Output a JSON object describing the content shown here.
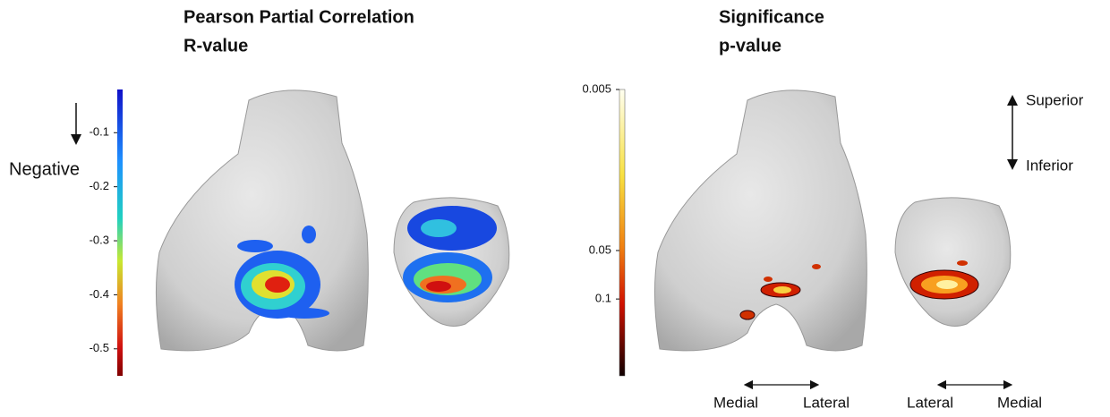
{
  "left_panel": {
    "title": [
      "Pearson Partial Correlation",
      "R-value"
    ],
    "direction_label": "Negative",
    "colorbar": {
      "scale": "linear",
      "lim": [
        -0.55,
        -0.02
      ],
      "ticks": [
        -0.1,
        -0.2,
        -0.3,
        -0.4,
        -0.5
      ]
    }
  },
  "right_panel": {
    "title": [
      "Significance",
      "p-value"
    ],
    "colorbar": {
      "scale": "log",
      "lim": [
        0.005,
        0.3
      ],
      "ticks": [
        0.005,
        0.05,
        0.1
      ]
    },
    "orientation": [
      "Superior",
      "Inferior"
    ],
    "femur_axis": [
      "Medial",
      "Lateral"
    ],
    "patella_axis": [
      "Lateral",
      "Medial"
    ]
  }
}
